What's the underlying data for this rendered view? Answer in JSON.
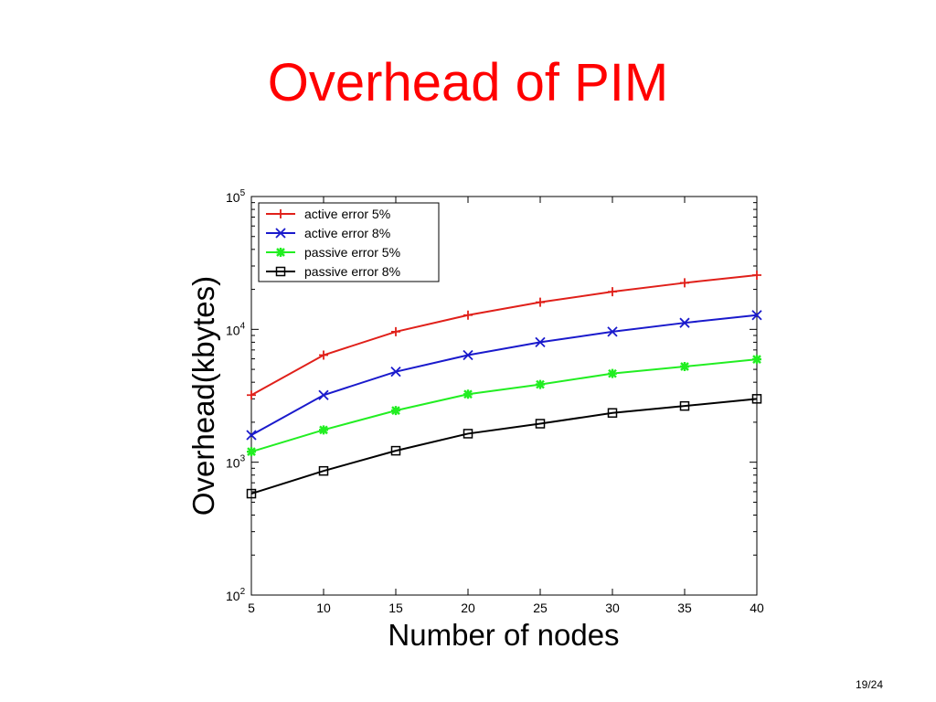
{
  "slide": {
    "title": "Overhead of PIM",
    "page_number": "19/24"
  },
  "chart_data": {
    "type": "line",
    "title": "",
    "xlabel": "Number of nodes",
    "ylabel": "Overhead(kbytes)",
    "yscale": "log",
    "xlim": [
      5,
      40
    ],
    "ylim": [
      100,
      100000
    ],
    "x_ticks": [
      5,
      10,
      15,
      20,
      25,
      30,
      35,
      40
    ],
    "y_ticks": [
      {
        "value": 100,
        "base": "10",
        "exp": "2"
      },
      {
        "value": 1000,
        "base": "10",
        "exp": "3"
      },
      {
        "value": 10000,
        "base": "10",
        "exp": "4"
      },
      {
        "value": 100000,
        "base": "10",
        "exp": "5"
      }
    ],
    "grid": false,
    "legend_position": "top-left",
    "x": [
      5,
      10,
      15,
      20,
      25,
      30,
      35,
      40
    ],
    "series": [
      {
        "name": "active error 5%",
        "color": "#e0201a",
        "marker": "plus",
        "values": [
          3200,
          6400,
          9600,
          12800,
          16000,
          19200,
          22400,
          25600
        ]
      },
      {
        "name": "active error 8%",
        "color": "#1a1acc",
        "marker": "x",
        "values": [
          1600,
          3200,
          4800,
          6400,
          8000,
          9600,
          11200,
          12800
        ]
      },
      {
        "name": "passive error 5%",
        "color": "#22ee22",
        "marker": "star",
        "values": [
          1200,
          1750,
          2450,
          3250,
          3850,
          4650,
          5250,
          5950
        ]
      },
      {
        "name": "passive error 8%",
        "color": "#000000",
        "marker": "square",
        "values": [
          580,
          860,
          1220,
          1640,
          1950,
          2350,
          2650,
          3000
        ]
      }
    ]
  }
}
